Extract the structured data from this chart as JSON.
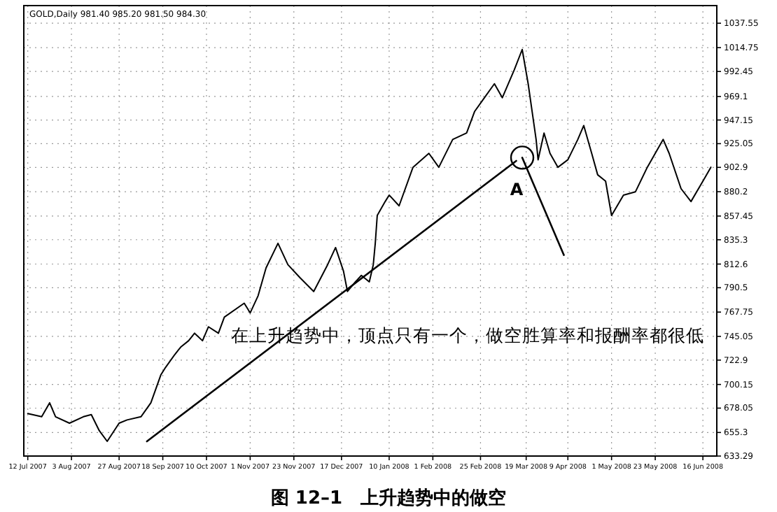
{
  "chart_data": {
    "type": "line",
    "title": "图 12–1　上升趋势中的做空",
    "subtitle": "GOLD,Daily  981.40 985.20 981.50 984.30",
    "annotations": [
      {
        "text": "A",
        "x": "2008-03-17",
        "y": 912
      },
      "在上升趋势中，顶点只有一个，做空胜算率和报酬率都很低"
    ],
    "x": [
      "2007-07-12",
      "2007-07-19",
      "2007-07-23",
      "2007-07-26",
      "2007-08-02",
      "2007-08-09",
      "2007-08-13",
      "2007-08-17",
      "2007-08-21",
      "2007-08-27",
      "2007-08-31",
      "2007-09-07",
      "2007-09-12",
      "2007-09-17",
      "2007-09-19",
      "2007-09-24",
      "2007-09-27",
      "2007-10-01",
      "2007-10-04",
      "2007-10-08",
      "2007-10-11",
      "2007-10-16",
      "2007-10-19",
      "2007-10-29",
      "2007-11-01",
      "2007-11-05",
      "2007-11-09",
      "2007-11-15",
      "2007-11-20",
      "2007-11-26",
      "2007-12-03",
      "2007-12-10",
      "2007-12-14",
      "2007-12-18",
      "2007-12-20",
      "2007-12-24",
      "2007-12-27",
      "2007-12-31",
      "2008-01-02",
      "2008-01-03",
      "2008-01-04",
      "2008-01-08",
      "2008-01-10",
      "2008-01-15",
      "2008-01-22",
      "2008-01-30",
      "2008-02-04",
      "2008-02-11",
      "2008-02-18",
      "2008-02-22",
      "2008-02-27",
      "2008-03-03",
      "2008-03-07",
      "2008-03-13",
      "2008-03-17",
      "2008-03-20",
      "2008-03-24",
      "2008-03-25",
      "2008-03-28",
      "2008-03-31",
      "2008-04-04",
      "2008-04-09",
      "2008-04-14",
      "2008-04-17",
      "2008-04-21",
      "2008-04-24",
      "2008-04-28",
      "2008-05-01",
      "2008-05-07",
      "2008-05-13",
      "2008-05-19",
      "2008-05-27",
      "2008-05-30",
      "2008-06-05",
      "2008-06-10",
      "2008-06-16",
      "2008-06-20"
    ],
    "series": [
      {
        "color": "#000000",
        "values": [
          673,
          670,
          683,
          670,
          664,
          670,
          672,
          657,
          647,
          664,
          667,
          670,
          683,
          709,
          715,
          728,
          735,
          741,
          748,
          741,
          754,
          748,
          763,
          776,
          767,
          783,
          809,
          832,
          812,
          800,
          787,
          812,
          828,
          806,
          787,
          796,
          802,
          796,
          812,
          832,
          858,
          871,
          877,
          867,
          903,
          916,
          903,
          929,
          935,
          955,
          968,
          981,
          968,
          994,
          1013,
          981,
          929,
          910,
          935,
          916,
          903,
          910,
          929,
          942,
          916,
          896,
          890,
          858,
          877,
          880,
          903,
          929,
          916,
          883,
          871,
          890,
          903
        ]
      },
      {
        "type": "line",
        "color": "#000000",
        "x": [
          "2007-09-10",
          "2008-03-14"
        ],
        "values": [
          647,
          909
        ]
      },
      {
        "type": "line",
        "color": "#000000",
        "x": [
          "2008-03-17",
          "2008-04-07"
        ],
        "values": [
          912,
          821
        ]
      }
    ],
    "xlim": [
      "2007-07-10",
      "2008-06-23"
    ],
    "ylim": [
      633.29,
      1054
    ],
    "xticks": [
      {
        "value": "2007-07-12",
        "label": "12 Jul 2007"
      },
      {
        "value": "2007-08-03",
        "label": "3 Aug 2007"
      },
      {
        "value": "2007-08-27",
        "label": "27 Aug 2007"
      },
      {
        "value": "2007-09-18",
        "label": "18 Sep 2007"
      },
      {
        "value": "2007-10-10",
        "label": "10 Oct 2007"
      },
      {
        "value": "2007-11-01",
        "label": "1 Nov 2007"
      },
      {
        "value": "2007-11-23",
        "label": "23 Nov 2007"
      },
      {
        "value": "2007-12-17",
        "label": "17 Dec 2007"
      },
      {
        "value": "2008-01-10",
        "label": "10 Jan 2008"
      },
      {
        "value": "2008-02-01",
        "label": "1 Feb 2008"
      },
      {
        "value": "2008-02-25",
        "label": "25 Feb 2008"
      },
      {
        "value": "2008-03-19",
        "label": "19 Mar 2008"
      },
      {
        "value": "2008-04-09",
        "label": "9 Apr 2008"
      },
      {
        "value": "2008-05-01",
        "label": "1 May 2008"
      },
      {
        "value": "2008-05-23",
        "label": "23 May 2008"
      },
      {
        "value": "2008-06-16",
        "label": "16 Jun 2008"
      }
    ],
    "yticks": [
      {
        "value": 633.29,
        "label": "633.29"
      },
      655.3,
      678.05,
      700.15,
      722.9,
      745.05,
      767.75,
      790.5,
      812.6,
      835.3,
      857.45,
      880.2,
      902.9,
      925.05,
      947.15,
      969.1,
      992.45,
      1014.75,
      1037.55
    ],
    "grid": true
  }
}
